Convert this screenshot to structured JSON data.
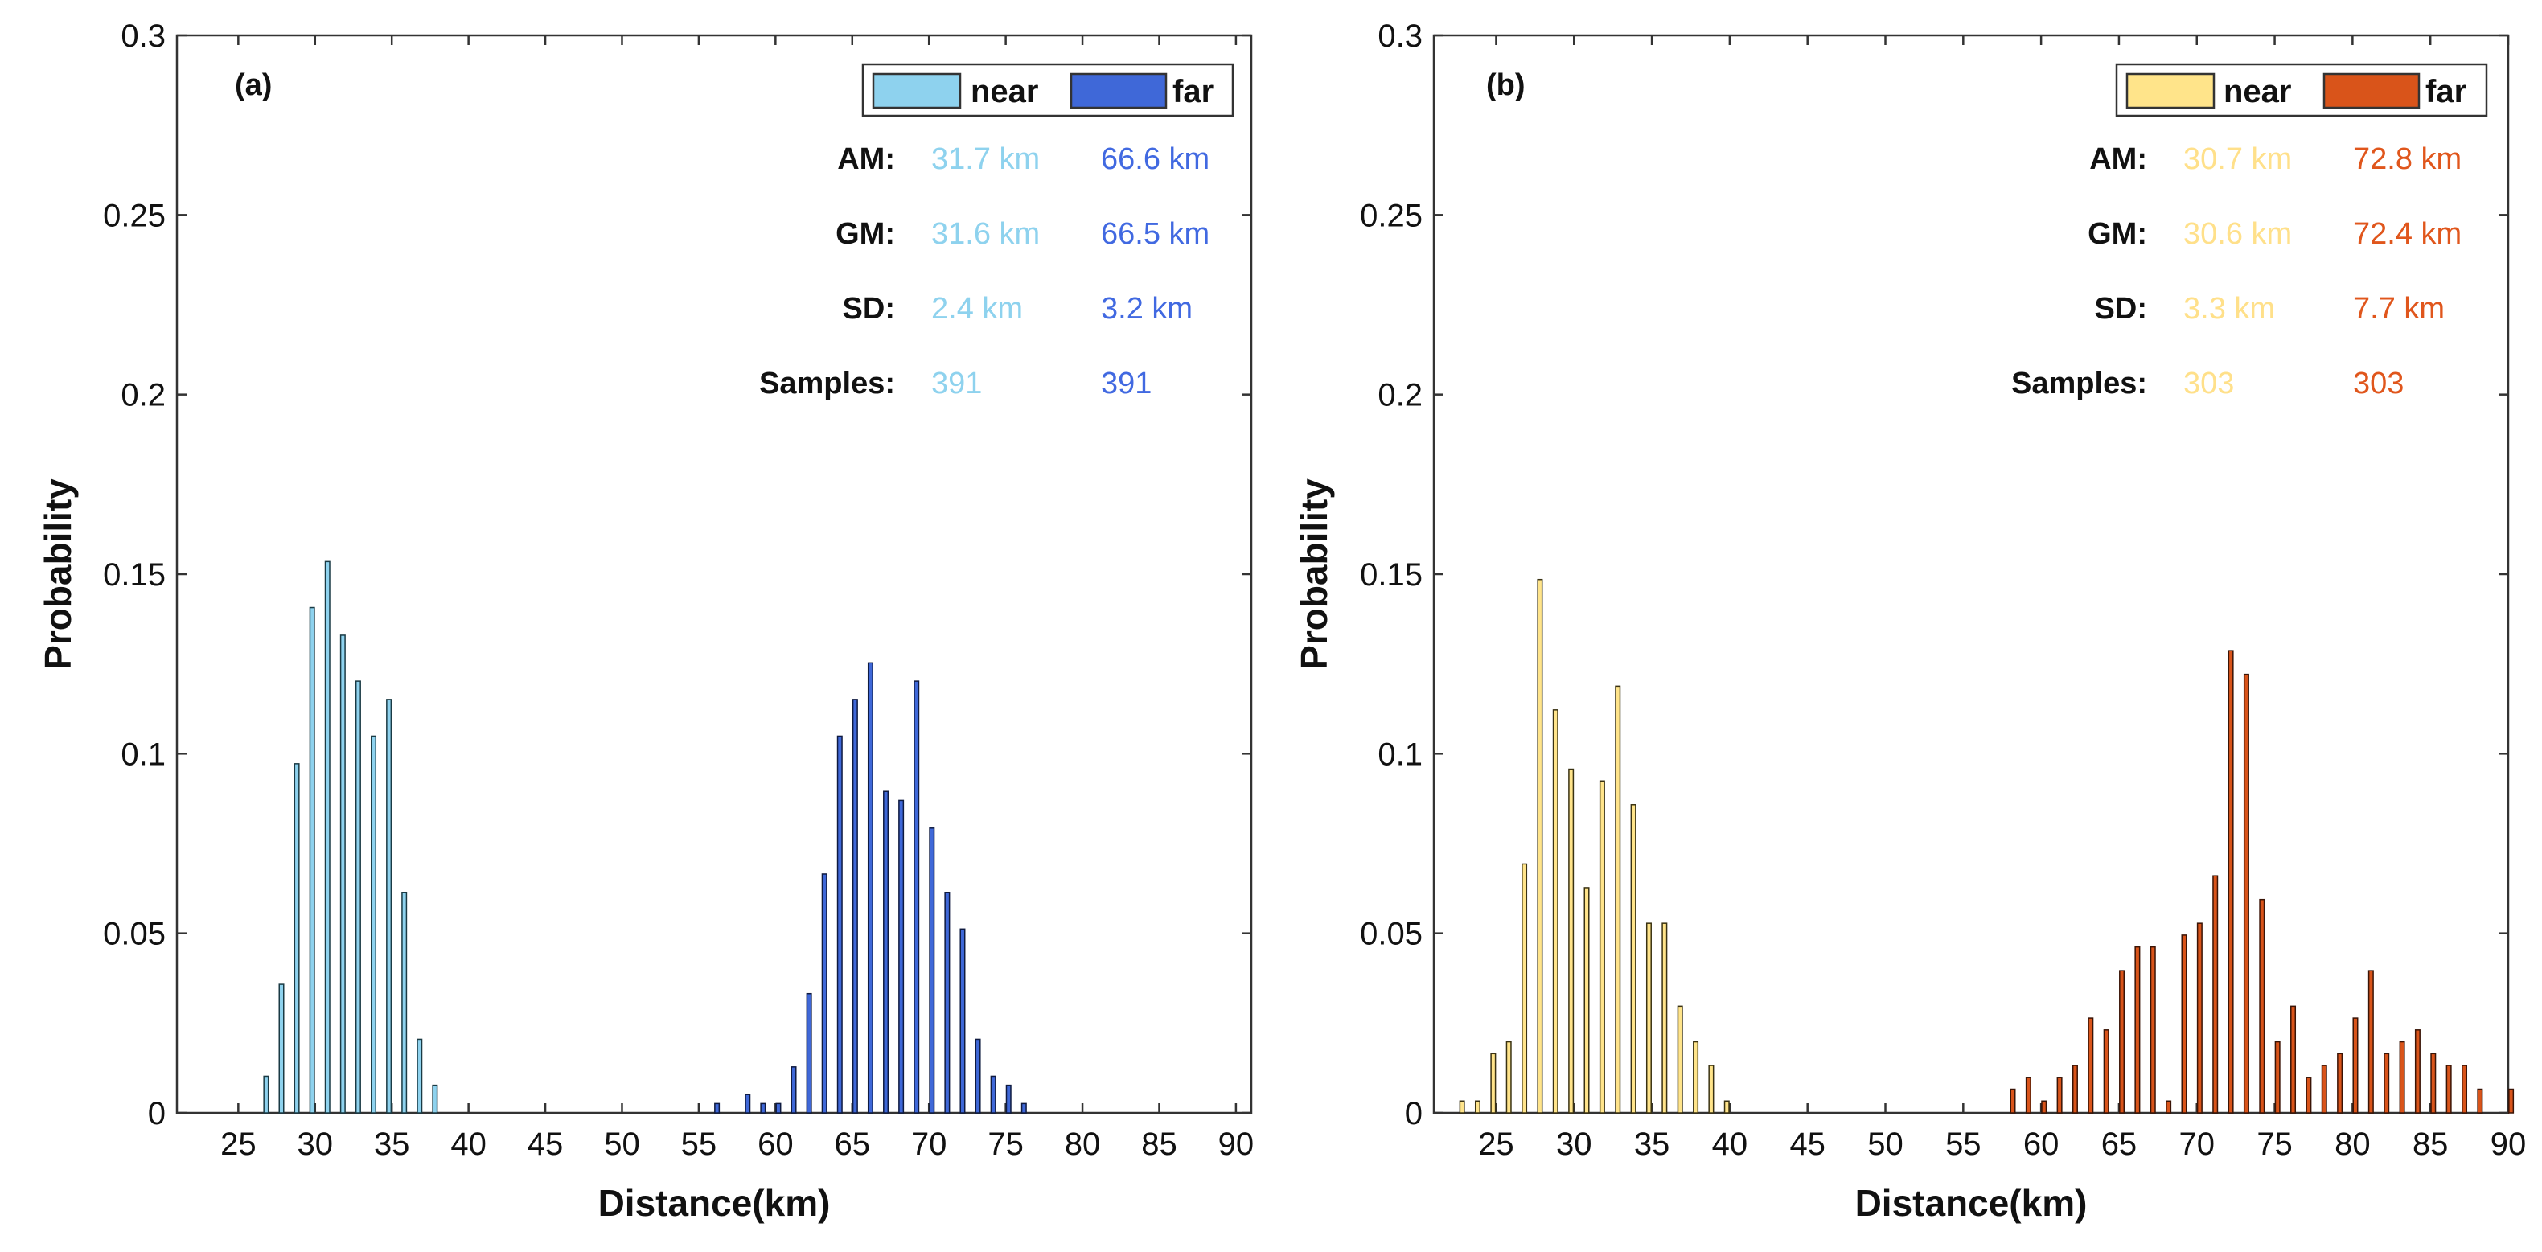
{
  "chart_data": [
    {
      "type": "bar",
      "panel_label": "(a)",
      "xlabel": "Distance(km)",
      "ylabel": "Probability",
      "xlim": [
        21,
        91
      ],
      "ylim": [
        0,
        0.3
      ],
      "xticks": [
        "25",
        "30",
        "35",
        "40",
        "45",
        "50",
        "55",
        "60",
        "65",
        "70",
        "75",
        "80",
        "85",
        "90"
      ],
      "yticks": [
        "0",
        "0.05",
        "0.1",
        "0.15",
        "0.2",
        "0.25",
        "0.3"
      ],
      "legend_position": "top-right",
      "stat_labels": [
        "AM:",
        "GM:",
        "SD:",
        "Samples:"
      ],
      "series": [
        {
          "name": "near",
          "fill": "#8ED2EE",
          "edge": "#1A3A44",
          "text_color": "#8ED2EE",
          "stats": [
            "31.7 km",
            "31.6 km",
            "2.4 km",
            "391"
          ],
          "points": [
            [
              27,
              0.0102
            ],
            [
              28,
              0.0358
            ],
            [
              29,
              0.0972
            ],
            [
              30,
              0.1407
            ],
            [
              31,
              0.1535
            ],
            [
              32,
              0.133
            ],
            [
              33,
              0.1202
            ],
            [
              34,
              0.1049
            ],
            [
              35,
              0.1151
            ],
            [
              36,
              0.0614
            ],
            [
              37,
              0.0205
            ],
            [
              38,
              0.0077
            ]
          ]
        },
        {
          "name": "far",
          "fill": "#3F68D8",
          "edge": "#0E1A40",
          "text_color": "#4169E1",
          "stats": [
            "66.6 km",
            "66.5 km",
            "3.2 km",
            "391"
          ],
          "points": [
            [
              56,
              0.0026
            ],
            [
              58,
              0.0051
            ],
            [
              59,
              0.0026
            ],
            [
              60,
              0.0026
            ],
            [
              61,
              0.0128
            ],
            [
              62,
              0.0332
            ],
            [
              63,
              0.0665
            ],
            [
              64,
              0.1049
            ],
            [
              65,
              0.1151
            ],
            [
              66,
              0.1253
            ],
            [
              67,
              0.0895
            ],
            [
              68,
              0.087
            ],
            [
              69,
              0.1202
            ],
            [
              70,
              0.0793
            ],
            [
              71,
              0.0614
            ],
            [
              72,
              0.0512
            ],
            [
              73,
              0.0205
            ],
            [
              74,
              0.0102
            ],
            [
              75,
              0.0077
            ],
            [
              76,
              0.0026
            ]
          ]
        }
      ]
    },
    {
      "type": "bar",
      "panel_label": "(b)",
      "xlabel": "Distance(km)",
      "ylabel": "Probability",
      "xlim": [
        21,
        90
      ],
      "ylim": [
        0,
        0.3
      ],
      "xticks": [
        "25",
        "30",
        "35",
        "40",
        "45",
        "50",
        "55",
        "60",
        "65",
        "70",
        "75",
        "80",
        "85",
        "90"
      ],
      "yticks": [
        "0",
        "0.05",
        "0.1",
        "0.15",
        "0.2",
        "0.25",
        "0.3"
      ],
      "legend_position": "top-right",
      "stat_labels": [
        "AM:",
        "GM:",
        "SD:",
        "Samples:"
      ],
      "series": [
        {
          "name": "near",
          "fill": "#FFE48A",
          "edge": "#3A3212",
          "text_color": "#FFE08A",
          "stats": [
            "30.7 km",
            "30.6 km",
            "3.3 km",
            "303"
          ],
          "points": [
            [
              23,
              0.0033
            ],
            [
              24,
              0.0033
            ],
            [
              25,
              0.0165
            ],
            [
              26,
              0.0198
            ],
            [
              27,
              0.0693
            ],
            [
              28,
              0.1485
            ],
            [
              29,
              0.1122
            ],
            [
              30,
              0.0957
            ],
            [
              31,
              0.0627
            ],
            [
              32,
              0.0924
            ],
            [
              33,
              0.1188
            ],
            [
              34,
              0.0858
            ],
            [
              35,
              0.0528
            ],
            [
              36,
              0.0528
            ],
            [
              37,
              0.0297
            ],
            [
              38,
              0.0198
            ],
            [
              39,
              0.0132
            ],
            [
              40,
              0.0033
            ]
          ]
        },
        {
          "name": "far",
          "fill": "#D9541A",
          "edge": "#3A1406",
          "text_color": "#E0561C",
          "stats": [
            "72.8 km",
            "72.4 km",
            "7.7 km",
            "303"
          ],
          "points": [
            [
              58,
              0.0066
            ],
            [
              59,
              0.0099
            ],
            [
              60,
              0.0033
            ],
            [
              61,
              0.0099
            ],
            [
              62,
              0.0132
            ],
            [
              63,
              0.0264
            ],
            [
              64,
              0.0231
            ],
            [
              65,
              0.0396
            ],
            [
              66,
              0.0462
            ],
            [
              67,
              0.0462
            ],
            [
              68,
              0.0033
            ],
            [
              69,
              0.0495
            ],
            [
              70,
              0.0528
            ],
            [
              71,
              0.066
            ],
            [
              72,
              0.1287
            ],
            [
              73,
              0.1221
            ],
            [
              74,
              0.0594
            ],
            [
              75,
              0.0198
            ],
            [
              76,
              0.0297
            ],
            [
              77,
              0.0099
            ],
            [
              78,
              0.0132
            ],
            [
              79,
              0.0165
            ],
            [
              80,
              0.0264
            ],
            [
              81,
              0.0396
            ],
            [
              82,
              0.0165
            ],
            [
              83,
              0.0198
            ],
            [
              84,
              0.0231
            ],
            [
              85,
              0.0165
            ],
            [
              86,
              0.0132
            ],
            [
              87,
              0.0132
            ],
            [
              88,
              0.0066
            ],
            [
              90,
              0.0066
            ]
          ]
        }
      ]
    }
  ]
}
